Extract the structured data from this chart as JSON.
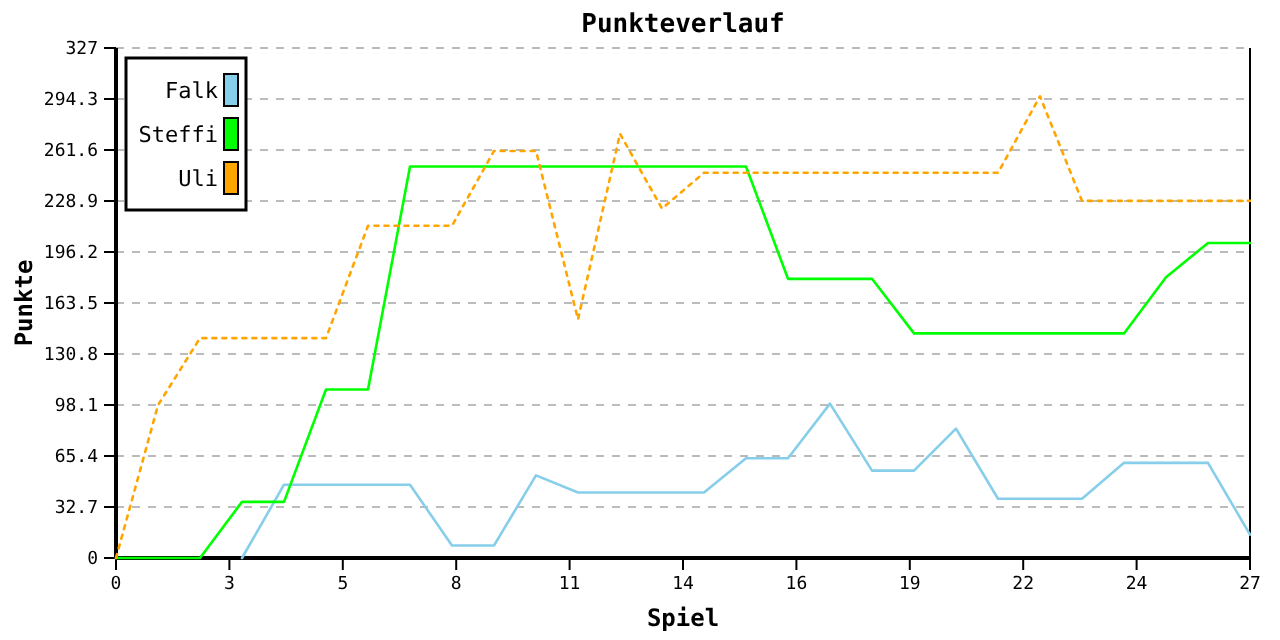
{
  "chart_data": {
    "type": "line",
    "title": "Punkteverlauf",
    "xlabel": "Spiel",
    "ylabel": "Punkte",
    "x": [
      0,
      1,
      2,
      3,
      4,
      5,
      6,
      7,
      8,
      9,
      10,
      11,
      12,
      13,
      14,
      15,
      16,
      17,
      18,
      19,
      20,
      21,
      22,
      23,
      24,
      25,
      26,
      27
    ],
    "xlim": [
      0,
      27
    ],
    "xticks": [
      0,
      {
        "value": 2.7,
        "label": "3"
      },
      {
        "value": 5.4,
        "label": "5"
      },
      {
        "value": 8.1,
        "label": "8"
      },
      {
        "value": 10.8,
        "label": "11"
      },
      {
        "value": 13.5,
        "label": "14"
      },
      {
        "value": 16.2,
        "label": "16"
      },
      {
        "value": 18.9,
        "label": "19"
      },
      {
        "value": 21.6,
        "label": "22"
      },
      {
        "value": 24.3,
        "label": "24"
      },
      27
    ],
    "ylim": [
      0,
      327
    ],
    "yticks": [
      0,
      32.7,
      65.4,
      98.1,
      130.8,
      163.5,
      196.2,
      228.9,
      261.6,
      294.3,
      327
    ],
    "grid": "y",
    "legend": "top left",
    "series": [
      {
        "name": "Falk",
        "color": "#87ceeb",
        "line_style": "solid",
        "values": [
          null,
          null,
          null,
          0,
          47,
          47,
          47,
          47,
          8,
          8,
          53,
          42,
          42,
          42,
          42,
          64,
          64,
          99,
          56,
          56,
          83,
          38,
          38,
          38,
          61,
          61,
          61,
          15
        ]
      },
      {
        "name": "Steffi",
        "color": "#00ff00",
        "line_style": "solid",
        "values": [
          0,
          0,
          0,
          36,
          36,
          108,
          108,
          251,
          251,
          251,
          251,
          251,
          251,
          251,
          251,
          251,
          179,
          179,
          179,
          144,
          144,
          144,
          144,
          144,
          144,
          180,
          202,
          202
        ]
      },
      {
        "name": "Uli",
        "color": "#ffa500",
        "line_style": "dotted",
        "values": [
          0,
          98,
          141,
          141,
          141,
          141,
          213,
          213,
          213,
          261,
          261,
          153,
          272,
          224,
          247,
          247,
          247,
          247,
          247,
          247,
          247,
          247,
          296,
          229,
          229,
          229,
          229,
          229
        ]
      }
    ]
  }
}
